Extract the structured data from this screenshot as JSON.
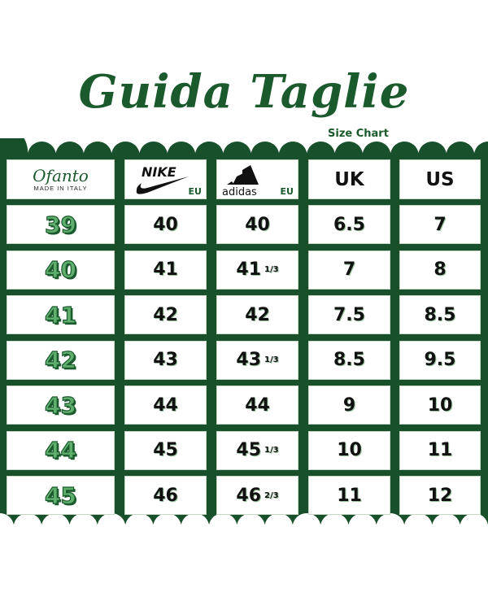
{
  "title": "Guida Taglie",
  "subtitle": "Size Chart",
  "colors": {
    "brand_green": "#17502a",
    "size_fill": "#5fae6e"
  },
  "header": {
    "brand": {
      "logo_text": "Ofanto",
      "tagline": "MADE IN ITALY"
    },
    "nike": {
      "logo_text": "NIKE",
      "label": "EU",
      "icon": "nike-swoosh-icon"
    },
    "adidas": {
      "logo_text": "adidas",
      "label": "EU",
      "icon": "adidas-stripes-icon"
    },
    "uk": "UK",
    "us": "US"
  },
  "rows": [
    {
      "ofanto": "39",
      "nike": "40",
      "adidas": "40",
      "adidas_frac": "",
      "uk": "6.5",
      "us": "7"
    },
    {
      "ofanto": "40",
      "nike": "41",
      "adidas": "41",
      "adidas_frac": "1/3",
      "uk": "7",
      "us": "8"
    },
    {
      "ofanto": "41",
      "nike": "42",
      "adidas": "42",
      "adidas_frac": "",
      "uk": "7.5",
      "us": "8.5"
    },
    {
      "ofanto": "42",
      "nike": "43",
      "adidas": "43",
      "adidas_frac": "1/3",
      "uk": "8.5",
      "us": "9.5"
    },
    {
      "ofanto": "43",
      "nike": "44",
      "adidas": "44",
      "adidas_frac": "",
      "uk": "9",
      "us": "10"
    },
    {
      "ofanto": "44",
      "nike": "45",
      "adidas": "45",
      "adidas_frac": "1/3",
      "uk": "10",
      "us": "11"
    },
    {
      "ofanto": "45",
      "nike": "46",
      "adidas": "46",
      "adidas_frac": "2/3",
      "uk": "11",
      "us": "12"
    }
  ]
}
